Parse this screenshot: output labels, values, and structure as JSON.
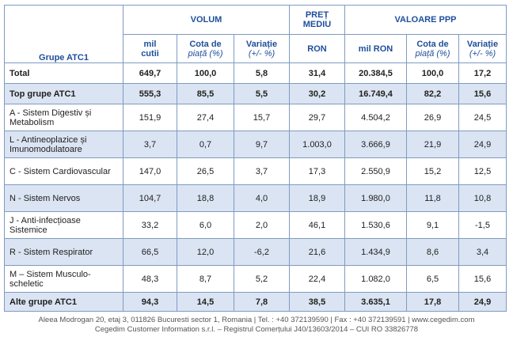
{
  "headers": {
    "group": "Grupe ATC1",
    "volum": "VOLUM",
    "pret_line1": "PREȚ",
    "pret_line2": "MEDIU",
    "valoare": "VALOARE PPP",
    "sub": {
      "mil_cutii_1": "mil",
      "mil_cutii_2": "cutii",
      "cota_1": "Cota de",
      "cota_2": "piață (%)",
      "variatie_1": "Variație",
      "variatie_2": "(+/- %)",
      "ron": "RON",
      "mil_ron": "mil RON",
      "cota_v_1": "Cota de",
      "cota_v_2": "piață (%)",
      "variatie_v_1": "Variație",
      "variatie_v_2": "(+/- %)"
    }
  },
  "rows": [
    {
      "label": "Total",
      "cells": [
        "649,7",
        "100,0",
        "5,8",
        "31,4",
        "20.384,5",
        "100,0",
        "17,2"
      ]
    },
    {
      "label": "Top grupe ATC1",
      "cells": [
        "555,3",
        "85,5",
        "5,5",
        "30,2",
        "16.749,4",
        "82,2",
        "15,6"
      ]
    },
    {
      "label": "A - Sistem Digestiv și Metabolism",
      "cells": [
        "151,9",
        "27,4",
        "15,7",
        "29,7",
        "4.504,2",
        "26,9",
        "24,5"
      ]
    },
    {
      "label": "L - Antineoplazice și Imunomodulatoare",
      "cells": [
        "3,7",
        "0,7",
        "9,7",
        "1.003,0",
        "3.666,9",
        "21,9",
        "24,9"
      ]
    },
    {
      "label": "C - Sistem Cardiovascular",
      "cells": [
        "147,0",
        "26,5",
        "3,7",
        "17,3",
        "2.550,9",
        "15,2",
        "12,5"
      ]
    },
    {
      "label": "N - Sistem Nervos",
      "cells": [
        "104,7",
        "18,8",
        "4,0",
        "18,9",
        "1.980,0",
        "11,8",
        "10,8"
      ]
    },
    {
      "label": "J - Anti-infecțioase Sistemice",
      "cells": [
        "33,2",
        "6,0",
        "2,0",
        "46,1",
        "1.530,6",
        "9,1",
        "-1,5"
      ]
    },
    {
      "label": "R - Sistem Respirator",
      "cells": [
        "66,5",
        "12,0",
        "-6,2",
        "21,6",
        "1.434,9",
        "8,6",
        "3,4"
      ]
    },
    {
      "label": "M – Sistem Musculo-scheletic",
      "cells": [
        "48,3",
        "8,7",
        "5,2",
        "22,4",
        "1.082,0",
        "6,5",
        "15,6"
      ]
    },
    {
      "label": "Alte grupe ATC1",
      "cells": [
        "94,3",
        "14,5",
        "7,8",
        "38,5",
        "3.635,1",
        "17,8",
        "24,9"
      ]
    }
  ],
  "footer": {
    "line1": "Aleea Modrogan 20, etaj 3, 011826 Bucuresti sector 1, Romania | Tel. : +40 372139590 | Fax : +40 372139591 | www.cegedim.com",
    "line2": "Cegedim Customer Information s.r.l. – Registrul Comerțului J40/13603/2014 – CUI RO 33826778"
  }
}
